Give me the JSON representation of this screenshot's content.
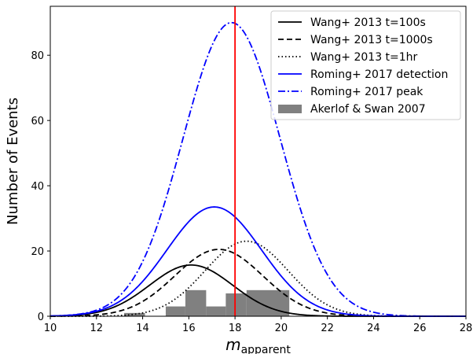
{
  "chart_data": {
    "type": "line",
    "title": "",
    "xlabel": "m",
    "xlabel_subscript": "apparent",
    "ylabel": "Number of Events",
    "xlim": [
      10,
      28
    ],
    "ylim": [
      0,
      95
    ],
    "xticks": [
      10,
      12,
      14,
      16,
      18,
      20,
      22,
      24,
      26,
      28
    ],
    "yticks": [
      0,
      20,
      40,
      60,
      80
    ],
    "grid": false,
    "legend_position": "top-right",
    "vertical_line": {
      "x": 18,
      "color": "#ff0000"
    },
    "series": [
      {
        "name": "Wang+ 2013 t=100s",
        "kind": "gaussian",
        "mu": 16.1,
        "sigma": 1.8,
        "amplitude": 15.7,
        "color": "#000000",
        "dash": "solid"
      },
      {
        "name": "Wang+ 2013 t=1000s",
        "kind": "gaussian",
        "mu": 17.3,
        "sigma": 1.9,
        "amplitude": 20.5,
        "color": "#000000",
        "dash": "dashed"
      },
      {
        "name": "Wang+ 2013 t=1hr",
        "kind": "gaussian",
        "mu": 18.5,
        "sigma": 1.8,
        "amplitude": 23.0,
        "color": "#000000",
        "dash": "dotted"
      },
      {
        "name": "Roming+ 2017 detection",
        "kind": "gaussian",
        "mu": 17.1,
        "sigma": 2.05,
        "amplitude": 33.5,
        "color": "#0000ff",
        "dash": "solid"
      },
      {
        "name": "Roming+ 2017 peak",
        "kind": "gaussian",
        "mu": 17.85,
        "sigma": 2.1,
        "amplitude": 90.0,
        "color": "#0000ff",
        "dash": "dashdot"
      }
    ],
    "histogram": {
      "name": "Akerlof & Swan 2007",
      "color": "#808080",
      "bins": [
        {
          "x0": 13.2,
          "x1": 14.1,
          "count": 1
        },
        {
          "x0": 15.0,
          "x1": 15.85,
          "count": 3
        },
        {
          "x0": 15.85,
          "x1": 16.75,
          "count": 8
        },
        {
          "x0": 16.75,
          "x1": 17.6,
          "count": 3
        },
        {
          "x0": 17.6,
          "x1": 18.5,
          "count": 7
        },
        {
          "x0": 18.5,
          "x1": 20.35,
          "count": 8
        }
      ]
    }
  }
}
